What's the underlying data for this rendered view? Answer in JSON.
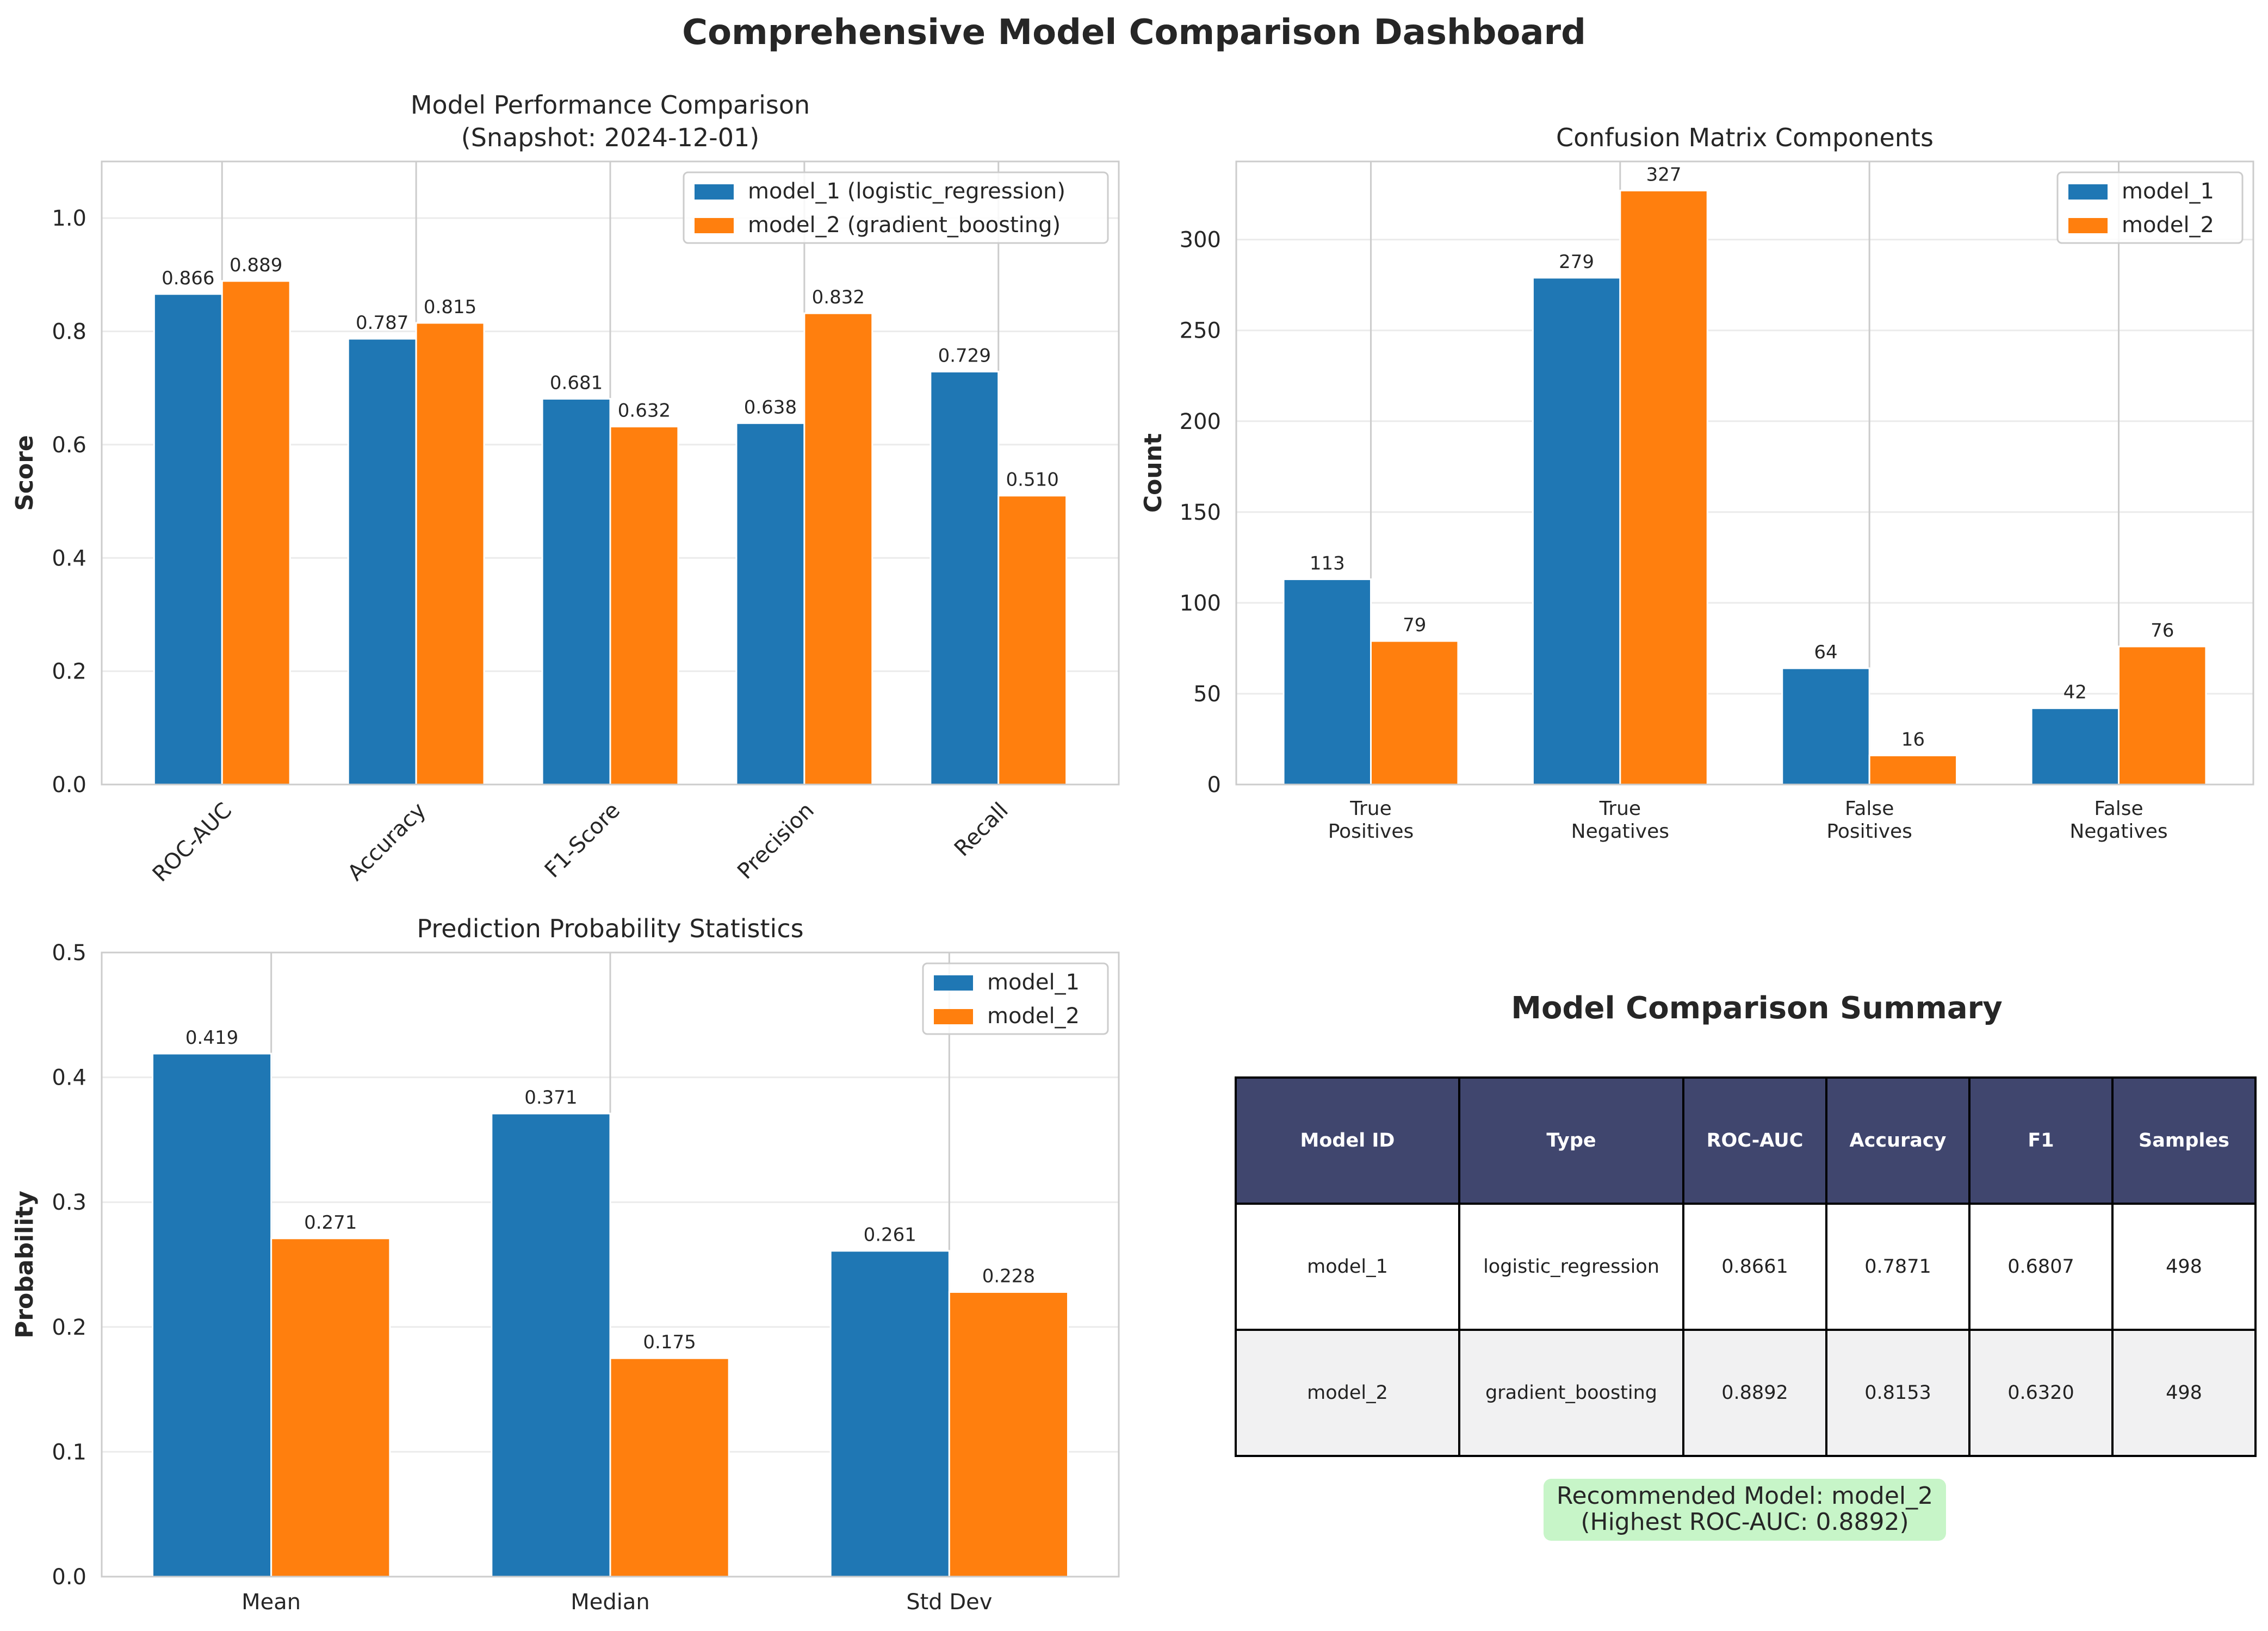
{
  "page": {
    "title": "Comprehensive Model Comparison Dashboard"
  },
  "colors": {
    "model_1": "#1f77b4",
    "model_2": "#ff7f0e",
    "table_header": "#40466e",
    "recommend_bg": "#c7f5c8"
  },
  "chart_data": [
    {
      "type": "bar",
      "title": "Model Performance Comparison",
      "subtitle": "(Snapshot: 2024-12-01)",
      "categories": [
        "ROC-AUC",
        "Accuracy",
        "F1-Score",
        "Precision",
        "Recall"
      ],
      "series": [
        {
          "name": "model_1 (logistic_regression)",
          "values": [
            0.866,
            0.787,
            0.681,
            0.638,
            0.729
          ],
          "labels": [
            "0.866",
            "0.787",
            "0.681",
            "0.638",
            "0.729"
          ]
        },
        {
          "name": "model_2 (gradient_boosting)",
          "values": [
            0.889,
            0.815,
            0.632,
            0.832,
            0.51
          ],
          "labels": [
            "0.889",
            "0.815",
            "0.632",
            "0.832",
            "0.510"
          ]
        }
      ],
      "xlabel": "",
      "ylabel": "Score",
      "ylim": [
        0,
        1.1
      ],
      "yticks": [
        0.0,
        0.2,
        0.4,
        0.6,
        0.8,
        1.0
      ],
      "ytick_labels": [
        "0.0",
        "0.2",
        "0.4",
        "0.6",
        "0.8",
        "1.0"
      ],
      "grid": true,
      "legend_position": "top-right"
    },
    {
      "type": "bar",
      "title": "Confusion Matrix Components",
      "categories": [
        [
          "True",
          "Positives"
        ],
        [
          "True",
          "Negatives"
        ],
        [
          "False",
          "Positives"
        ],
        [
          "False",
          "Negatives"
        ]
      ],
      "series": [
        {
          "name": "model_1",
          "values": [
            113,
            279,
            64,
            42
          ],
          "labels": [
            "113",
            "279",
            "64",
            "42"
          ]
        },
        {
          "name": "model_2",
          "values": [
            79,
            327,
            16,
            76
          ],
          "labels": [
            "79",
            "327",
            "16",
            "76"
          ]
        }
      ],
      "xlabel": "",
      "ylabel": "Count",
      "ylim": [
        0,
        343
      ],
      "yticks": [
        0,
        50,
        100,
        150,
        200,
        250,
        300
      ],
      "ytick_labels": [
        "0",
        "50",
        "100",
        "150",
        "200",
        "250",
        "300"
      ],
      "grid": true,
      "legend_position": "top-right"
    },
    {
      "type": "bar",
      "title": "Prediction Probability Statistics",
      "categories": [
        "Mean",
        "Median",
        "Std Dev"
      ],
      "series": [
        {
          "name": "model_1",
          "values": [
            0.419,
            0.371,
            0.261
          ],
          "labels": [
            "0.419",
            "0.371",
            "0.261"
          ]
        },
        {
          "name": "model_2",
          "values": [
            0.271,
            0.175,
            0.228
          ],
          "labels": [
            "0.271",
            "0.175",
            "0.228"
          ]
        }
      ],
      "xlabel": "",
      "ylabel": "Probability",
      "ylim": [
        0,
        0.5
      ],
      "yticks": [
        0.0,
        0.1,
        0.2,
        0.3,
        0.4,
        0.5
      ],
      "ytick_labels": [
        "0.0",
        "0.1",
        "0.2",
        "0.3",
        "0.4",
        "0.5"
      ],
      "grid": true,
      "legend_position": "top-right"
    },
    {
      "type": "table",
      "title": "Model Comparison Summary",
      "columns": [
        "Model ID",
        "Type",
        "ROC-AUC",
        "Accuracy",
        "F1",
        "Samples"
      ],
      "rows": [
        [
          "model_1",
          "logistic_regression",
          "0.8661",
          "0.7871",
          "0.6807",
          "498"
        ],
        [
          "model_2",
          "gradient_boosting",
          "0.8892",
          "0.8153",
          "0.6320",
          "498"
        ]
      ],
      "recommendation_line1": "Recommended Model: model_2",
      "recommendation_line2": "(Highest ROC-AUC: 0.8892)"
    }
  ]
}
